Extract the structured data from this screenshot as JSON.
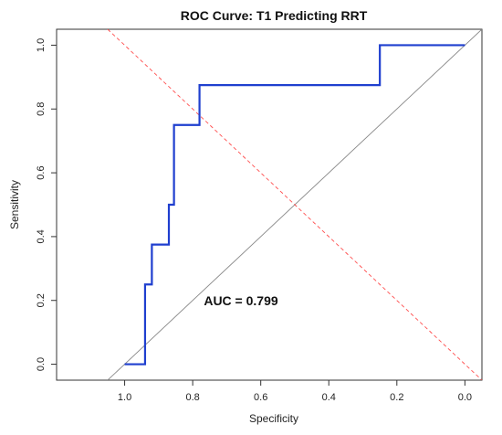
{
  "chart_data": {
    "type": "line",
    "title": "ROC Curve: T1 Predicting RRT",
    "xlabel": "Specificity",
    "ylabel": "Sensitivity",
    "x_reversed": true,
    "xlim": [
      1.2,
      -0.05
    ],
    "ylim": [
      -0.05,
      1.05
    ],
    "xticks": [
      1.0,
      0.8,
      0.6,
      0.4,
      0.2,
      0.0
    ],
    "xtick_labels": [
      "1.0",
      "0.8",
      "0.6",
      "0.4",
      "0.2",
      "0.0"
    ],
    "yticks": [
      0.0,
      0.2,
      0.4,
      0.6,
      0.8,
      1.0
    ],
    "ytick_labels": [
      "0.0",
      "0.2",
      "0.4",
      "0.6",
      "0.8",
      "1.0"
    ],
    "annotation": "AUC = 0.799",
    "series": [
      {
        "color": "#1f3fcf",
        "style": "solid",
        "x": [
          1.0,
          0.94,
          0.94,
          0.92,
          0.92,
          0.87,
          0.87,
          0.855,
          0.855,
          0.78,
          0.78,
          0.25,
          0.25,
          0.0
        ],
        "y": [
          0.0,
          0.0,
          0.25,
          0.25,
          0.375,
          0.375,
          0.5,
          0.5,
          0.75,
          0.75,
          0.875,
          0.875,
          1.0,
          1.0
        ]
      },
      {
        "color": "#888888",
        "style": "solid",
        "x": [
          1.05,
          -0.05
        ],
        "y": [
          -0.05,
          1.05
        ]
      },
      {
        "color": "#ff4d4d",
        "style": "dashed",
        "x": [
          1.05,
          -0.05
        ],
        "y": [
          1.05,
          -0.05
        ]
      }
    ]
  }
}
